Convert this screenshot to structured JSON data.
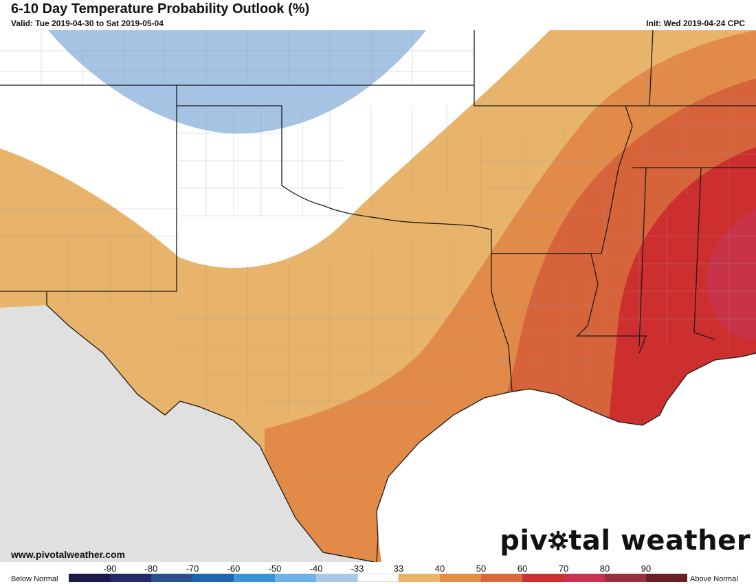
{
  "header": {
    "title": "6-10 Day Temperature Probability Outlook (%)",
    "valid": "Valid: Tue 2019-04-30 to Sat 2019-05-04",
    "init": "Init: Wed 2019-04-24 CPC"
  },
  "footer": {
    "website": "www.pivotalweather.com",
    "brand_left": "piv",
    "brand_right": "tal weather",
    "brand_icon": "gear-icon"
  },
  "legend": {
    "below_label": "Below Normal",
    "above_label": "Above Normal",
    "ticks": [
      "-90",
      "-80",
      "-70",
      "-60",
      "-50",
      "-40",
      "-33",
      "33",
      "40",
      "50",
      "60",
      "70",
      "80",
      "90"
    ],
    "colors": [
      "#1c1a4a",
      "#25296b",
      "#2c4f8d",
      "#1f66ac",
      "#3b93d9",
      "#6fb2e6",
      "#a9c8e8",
      "#ffffff",
      "#e9b46a",
      "#e58c49",
      "#d9683d",
      "#c93230",
      "#c7334e",
      "#99303b",
      "#6b1f26"
    ]
  },
  "map": {
    "below_color": "#a5c3e3",
    "above_33_color": "#e8b36a",
    "above_40_color": "#e28a48",
    "above_50_color": "#d6633a",
    "above_60_color": "#cc2f2e",
    "above_70_color": "#c9344e",
    "no_data_color": "#e0e0e0",
    "border_color": "#222222"
  }
}
